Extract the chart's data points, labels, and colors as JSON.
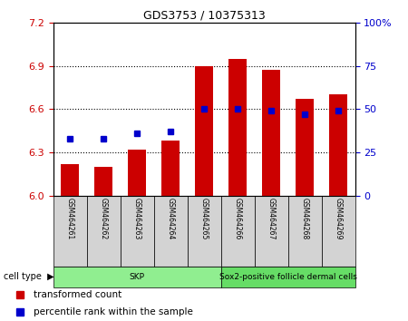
{
  "title": "GDS3753 / 10375313",
  "samples": [
    "GSM464261",
    "GSM464262",
    "GSM464263",
    "GSM464264",
    "GSM464265",
    "GSM464266",
    "GSM464267",
    "GSM464268",
    "GSM464269"
  ],
  "red_values": [
    6.22,
    6.2,
    6.32,
    6.38,
    6.9,
    6.95,
    6.87,
    6.67,
    6.7
  ],
  "blue_percentiles": [
    33,
    33,
    36,
    37,
    50,
    50,
    49,
    47,
    49
  ],
  "ylim_left": [
    6.0,
    7.2
  ],
  "ylim_right": [
    0,
    100
  ],
  "yticks_left": [
    6.0,
    6.3,
    6.6,
    6.9,
    7.2
  ],
  "yticks_right": [
    0,
    25,
    50,
    75,
    100
  ],
  "cell_groups": [
    {
      "label": "SKP",
      "start": 0,
      "end": 5,
      "color": "#90EE90"
    },
    {
      "label": "Sox2-positive follicle dermal cells",
      "start": 5,
      "end": 9,
      "color": "#66DD66"
    }
  ],
  "bar_color": "#CC0000",
  "dot_color": "#0000CC",
  "bar_bottom": 6.0,
  "bar_width": 0.55,
  "bg_color": "#FFFFFF",
  "cell_type_label": "cell type",
  "legend_red": "transformed count",
  "legend_blue": "percentile rank within the sample",
  "tick_color_left": "#CC0000",
  "tick_color_right": "#0000CC",
  "sample_box_color": "#D3D3D3"
}
